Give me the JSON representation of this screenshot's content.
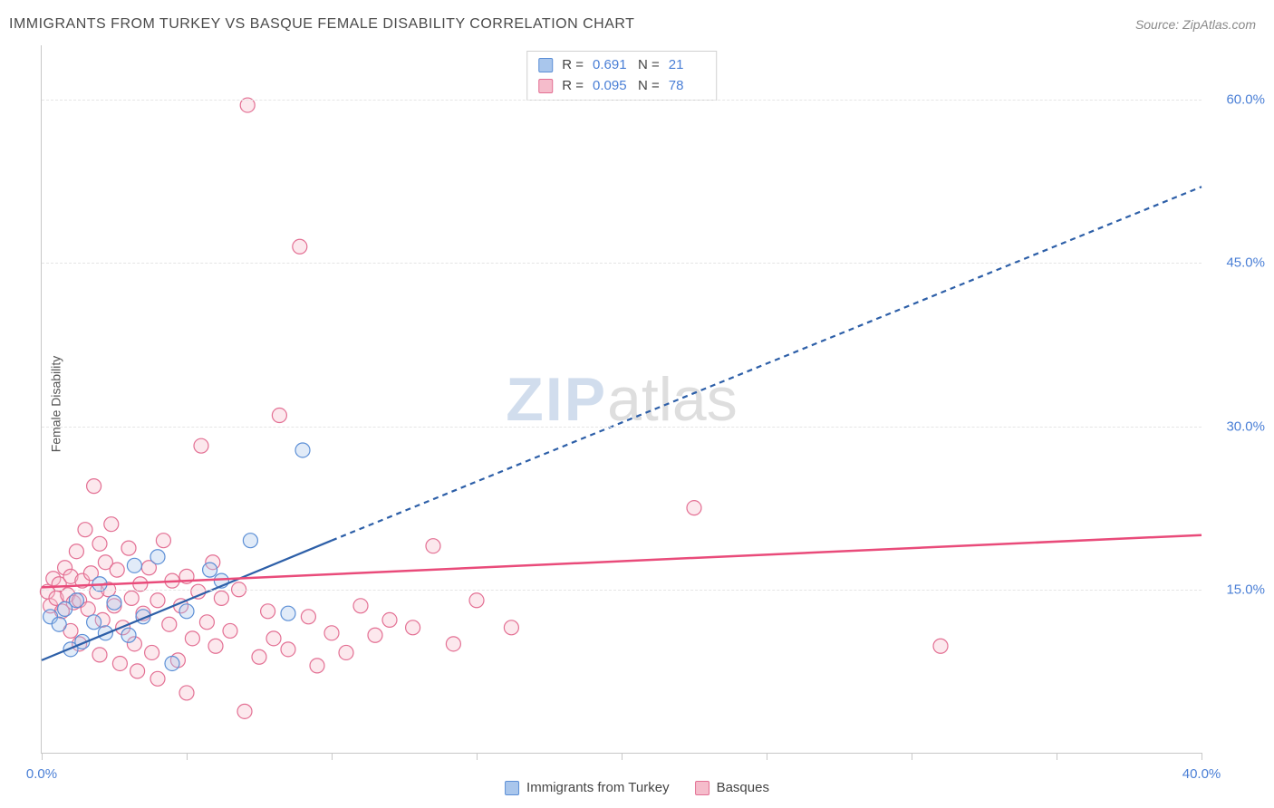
{
  "header": {
    "title": "IMMIGRANTS FROM TURKEY VS BASQUE FEMALE DISABILITY CORRELATION CHART",
    "source_label": "Source: ",
    "source_name": "ZipAtlas.com"
  },
  "watermark": {
    "part1": "ZIP",
    "part2": "atlas"
  },
  "chart": {
    "type": "scatter",
    "background_color": "#ffffff",
    "grid_color": "#e5e5e5",
    "axis_color": "#c8c8c8",
    "tick_label_color": "#4a7fd6",
    "ylabel": "Female Disability",
    "ylabel_fontsize": 14,
    "xlim": [
      0,
      40
    ],
    "ylim": [
      0,
      65
    ],
    "xticks": [
      0,
      5,
      10,
      15,
      20,
      25,
      30,
      35,
      40
    ],
    "xtick_labels": {
      "0": "0.0%",
      "40": "40.0%"
    },
    "yticks": [
      15,
      30,
      45,
      60
    ],
    "ytick_labels": {
      "15": "15.0%",
      "30": "30.0%",
      "45": "45.0%",
      "60": "60.0%"
    },
    "marker_radius": 8,
    "marker_fill_opacity": 0.35,
    "marker_stroke_width": 1.2,
    "series": [
      {
        "key": "turkey",
        "label": "Immigrants from Turkey",
        "color_fill": "#a9c6ec",
        "color_stroke": "#5c8fd6",
        "R": "0.691",
        "N": "21",
        "trend": {
          "solid": {
            "x1": 0,
            "y1": 8.5,
            "x2": 10,
            "y2": 19.5
          },
          "dashed": {
            "x1": 10,
            "y1": 19.5,
            "x2": 40,
            "y2": 52
          },
          "stroke": "#2d5fa8",
          "width": 2.2,
          "dash": "6,5"
        },
        "points": [
          [
            0.3,
            12.5
          ],
          [
            0.6,
            11.8
          ],
          [
            0.8,
            13.2
          ],
          [
            1.0,
            9.5
          ],
          [
            1.2,
            14.0
          ],
          [
            1.4,
            10.2
          ],
          [
            1.8,
            12.0
          ],
          [
            2.0,
            15.5
          ],
          [
            2.2,
            11.0
          ],
          [
            2.5,
            13.8
          ],
          [
            3.0,
            10.8
          ],
          [
            3.2,
            17.2
          ],
          [
            3.5,
            12.5
          ],
          [
            4.0,
            18.0
          ],
          [
            4.5,
            8.2
          ],
          [
            5.0,
            13.0
          ],
          [
            5.8,
            16.8
          ],
          [
            7.2,
            19.5
          ],
          [
            8.5,
            12.8
          ],
          [
            9.0,
            27.8
          ],
          [
            6.2,
            15.8
          ]
        ]
      },
      {
        "key": "basques",
        "label": "Basques",
        "color_fill": "#f5bccb",
        "color_stroke": "#e36f93",
        "R": "0.095",
        "N": "78",
        "trend": {
          "solid": {
            "x1": 0,
            "y1": 15.2,
            "x2": 40,
            "y2": 20.0
          },
          "stroke": "#e94b7a",
          "width": 2.5
        },
        "points": [
          [
            0.2,
            14.8
          ],
          [
            0.3,
            13.5
          ],
          [
            0.4,
            16.0
          ],
          [
            0.5,
            14.2
          ],
          [
            0.6,
            15.5
          ],
          [
            0.7,
            13.0
          ],
          [
            0.8,
            17.0
          ],
          [
            0.9,
            14.5
          ],
          [
            1.0,
            16.2
          ],
          [
            1.1,
            13.8
          ],
          [
            1.2,
            18.5
          ],
          [
            1.3,
            14.0
          ],
          [
            1.4,
            15.8
          ],
          [
            1.5,
            20.5
          ],
          [
            1.6,
            13.2
          ],
          [
            1.7,
            16.5
          ],
          [
            1.8,
            24.5
          ],
          [
            1.9,
            14.8
          ],
          [
            2.0,
            19.2
          ],
          [
            2.1,
            12.2
          ],
          [
            2.2,
            17.5
          ],
          [
            2.3,
            15.0
          ],
          [
            2.4,
            21.0
          ],
          [
            2.5,
            13.5
          ],
          [
            2.6,
            16.8
          ],
          [
            2.8,
            11.5
          ],
          [
            3.0,
            18.8
          ],
          [
            3.1,
            14.2
          ],
          [
            3.2,
            10.0
          ],
          [
            3.4,
            15.5
          ],
          [
            3.5,
            12.8
          ],
          [
            3.7,
            17.0
          ],
          [
            3.8,
            9.2
          ],
          [
            4.0,
            14.0
          ],
          [
            4.2,
            19.5
          ],
          [
            4.4,
            11.8
          ],
          [
            4.5,
            15.8
          ],
          [
            4.7,
            8.5
          ],
          [
            4.8,
            13.5
          ],
          [
            5.0,
            16.2
          ],
          [
            5.2,
            10.5
          ],
          [
            5.4,
            14.8
          ],
          [
            5.5,
            28.2
          ],
          [
            5.7,
            12.0
          ],
          [
            5.9,
            17.5
          ],
          [
            6.0,
            9.8
          ],
          [
            6.2,
            14.2
          ],
          [
            6.5,
            11.2
          ],
          [
            6.8,
            15.0
          ],
          [
            7.0,
            3.8
          ],
          [
            7.1,
            59.5
          ],
          [
            7.5,
            8.8
          ],
          [
            7.8,
            13.0
          ],
          [
            8.0,
            10.5
          ],
          [
            8.2,
            31.0
          ],
          [
            8.5,
            9.5
          ],
          [
            8.9,
            46.5
          ],
          [
            9.2,
            12.5
          ],
          [
            9.5,
            8.0
          ],
          [
            10.0,
            11.0
          ],
          [
            10.5,
            9.2
          ],
          [
            11.0,
            13.5
          ],
          [
            11.5,
            10.8
          ],
          [
            12.0,
            12.2
          ],
          [
            12.8,
            11.5
          ],
          [
            13.5,
            19.0
          ],
          [
            14.2,
            10.0
          ],
          [
            15.0,
            14.0
          ],
          [
            16.2,
            11.5
          ],
          [
            22.5,
            22.5
          ],
          [
            31.0,
            9.8
          ],
          [
            1.0,
            11.2
          ],
          [
            1.3,
            10.0
          ],
          [
            2.0,
            9.0
          ],
          [
            2.7,
            8.2
          ],
          [
            3.3,
            7.5
          ],
          [
            4.0,
            6.8
          ],
          [
            5.0,
            5.5
          ]
        ]
      }
    ],
    "legend_top": {
      "R_label": "R = ",
      "N_label": "N = "
    }
  }
}
